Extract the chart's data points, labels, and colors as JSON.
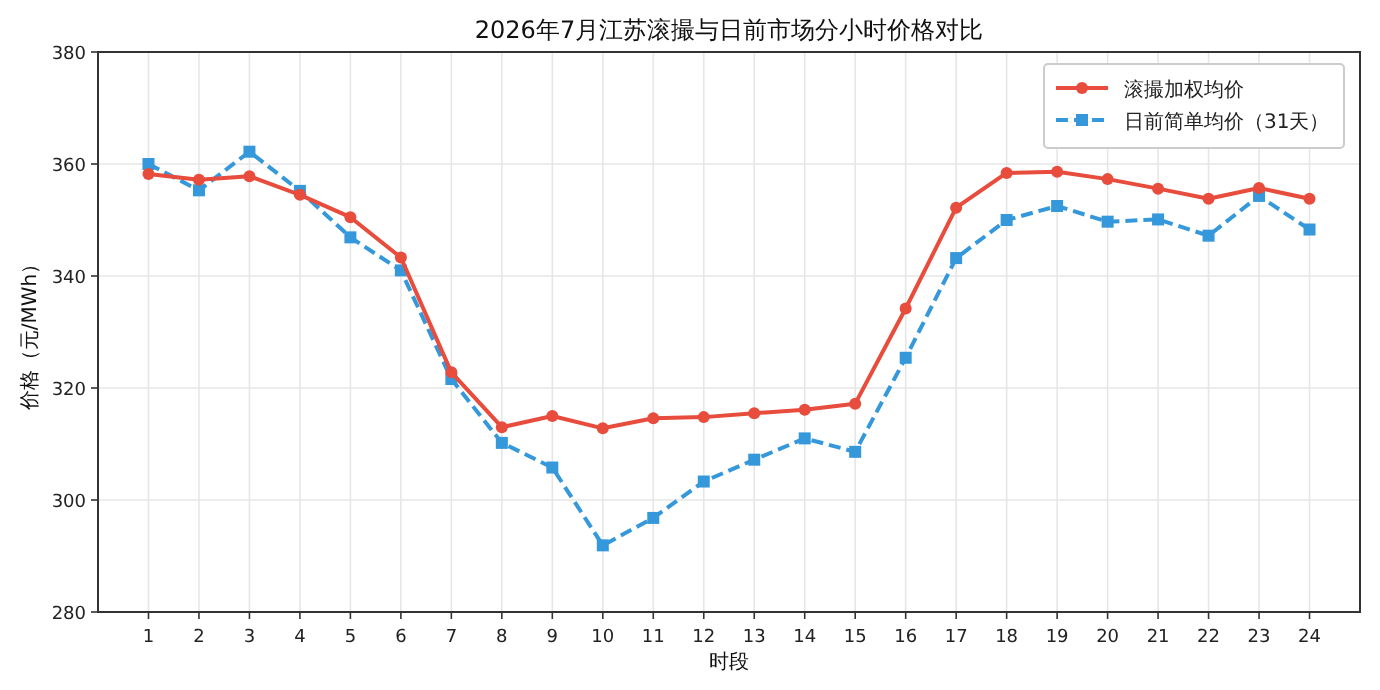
{
  "chart_data": {
    "type": "line",
    "title": "2026年7月江苏滚撮与日前市场分小时价格对比",
    "xlabel": "时段",
    "ylabel": "价格（元/MWh）",
    "x": [
      1,
      2,
      3,
      4,
      5,
      6,
      7,
      8,
      9,
      10,
      11,
      12,
      13,
      14,
      15,
      16,
      17,
      18,
      19,
      20,
      21,
      22,
      23,
      24
    ],
    "xlim": [
      0,
      25
    ],
    "xticks": [
      1,
      2,
      3,
      4,
      5,
      6,
      7,
      8,
      9,
      10,
      11,
      12,
      13,
      14,
      15,
      16,
      17,
      18,
      19,
      20,
      21,
      22,
      23,
      24
    ],
    "ylim": [
      280,
      380
    ],
    "yticks": [
      280,
      300,
      320,
      340,
      360,
      380
    ],
    "grid": true,
    "legend": "top right",
    "series": [
      {
        "name": "滚撮加权均价",
        "color": "#e74c3c",
        "marker": "circle",
        "line_style": "solid",
        "values": [
          358.2,
          357.2,
          357.8,
          354.5,
          350.5,
          343.3,
          322.8,
          313.0,
          315.0,
          312.8,
          314.6,
          314.8,
          315.5,
          316.1,
          317.2,
          334.2,
          352.2,
          358.4,
          358.6,
          357.3,
          355.6,
          353.8,
          355.7,
          353.8
        ]
      },
      {
        "name": "日前简单均价（31天）",
        "color": "#3498db",
        "marker": "square",
        "line_style": "dashed",
        "values": [
          360.0,
          355.3,
          362.2,
          355.2,
          346.9,
          341.0,
          321.6,
          310.2,
          305.8,
          291.9,
          296.8,
          303.3,
          307.2,
          311.0,
          308.6,
          325.4,
          343.2,
          350.0,
          352.5,
          349.7,
          350.1,
          347.2,
          354.3,
          348.3
        ]
      }
    ]
  }
}
